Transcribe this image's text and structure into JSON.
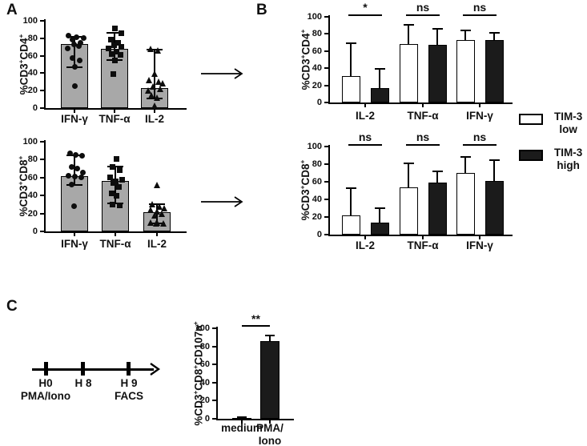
{
  "figure": {
    "panel_a_label": "A",
    "panel_b_label": "B",
    "panel_c_label": "C"
  },
  "legend": {
    "items": [
      {
        "label": "TIM-3\nlow",
        "fill": "#ffffff"
      },
      {
        "label": "TIM-3\nhigh",
        "fill": "#1b1b1b"
      }
    ]
  },
  "timeline": {
    "ticks": [
      {
        "time": "H0",
        "event": "PMA/Iono"
      },
      {
        "time": "H 8",
        "event": ""
      },
      {
        "time": "H 9",
        "event": "FACS"
      }
    ]
  },
  "colors": {
    "gray_bar": "#a8a8a8",
    "black_bar": "#1b1b1b",
    "white_bar": "#ffffff",
    "line": "#000000"
  },
  "chart_data": [
    {
      "id": "panel_a_cd4",
      "type": "bar",
      "title": "",
      "ylabel": "%CD3+CD4+",
      "xlabel": "",
      "ylim": [
        0,
        100
      ],
      "yticks": [
        0,
        20,
        40,
        60,
        80,
        100
      ],
      "grid": false,
      "categories": [
        "IFN-γ",
        "TNF-α",
        "IL-2"
      ],
      "bar_fill": "#a8a8a8",
      "values": [
        73,
        68,
        23
      ],
      "range_whiskers": [
        [
          47,
          82
        ],
        [
          55,
          86
        ],
        [
          11,
          67
        ]
      ],
      "point_markers": [
        "circle",
        "square",
        "triangle"
      ],
      "points": [
        [
          [
            -8,
            83
          ],
          [
            2,
            81
          ],
          [
            11,
            80
          ],
          [
            -3,
            78
          ],
          [
            7,
            75
          ],
          [
            -1,
            73
          ],
          [
            5,
            71
          ],
          [
            -9,
            68
          ],
          [
            -3,
            57
          ],
          [
            6,
            55
          ],
          [
            0,
            47
          ],
          [
            0,
            25
          ]
        ],
        [
          [
            0,
            91
          ],
          [
            8,
            86
          ],
          [
            -5,
            78
          ],
          [
            4,
            75
          ],
          [
            -1,
            72
          ],
          [
            8,
            70
          ],
          [
            -8,
            68
          ],
          [
            2,
            65
          ],
          [
            -4,
            62
          ],
          [
            7,
            61
          ],
          [
            0,
            55
          ],
          [
            -2,
            39
          ]
        ],
        [
          [
            -5,
            68
          ],
          [
            4,
            66
          ],
          [
            0,
            39
          ],
          [
            -7,
            32
          ],
          [
            5,
            30
          ],
          [
            10,
            28
          ],
          [
            -2,
            25
          ],
          [
            7,
            22
          ],
          [
            -8,
            20
          ],
          [
            -4,
            15
          ],
          [
            3,
            12
          ],
          [
            0,
            3
          ]
        ]
      ]
    },
    {
      "id": "panel_a_cd8",
      "type": "bar",
      "title": "",
      "ylabel": "%CD3+CD8+",
      "xlabel": "",
      "ylim": [
        0,
        100
      ],
      "yticks": [
        0,
        20,
        40,
        60,
        80,
        100
      ],
      "grid": false,
      "categories": [
        "IFN-γ",
        "TNF-α",
        "IL-2"
      ],
      "bar_fill": "#a8a8a8",
      "values": [
        62,
        56,
        21
      ],
      "range_whiskers": [
        [
          52,
          85
        ],
        [
          31,
          72
        ],
        [
          9,
          30
        ]
      ],
      "point_markers": [
        "circle",
        "square",
        "triangle"
      ],
      "points": [
        [
          [
            -6,
            87
          ],
          [
            1,
            85
          ],
          [
            9,
            84
          ],
          [
            -4,
            72
          ],
          [
            3,
            70
          ],
          [
            10,
            66
          ],
          [
            -8,
            62
          ],
          [
            0,
            61
          ],
          [
            8,
            60
          ],
          [
            -4,
            52
          ],
          [
            -1,
            28
          ]
        ],
        [
          [
            1,
            81
          ],
          [
            -4,
            72
          ],
          [
            5,
            68
          ],
          [
            -7,
            60
          ],
          [
            8,
            58
          ],
          [
            0,
            56
          ],
          [
            -3,
            54
          ],
          [
            4,
            50
          ],
          [
            -5,
            42
          ],
          [
            1,
            40
          ],
          [
            -4,
            30
          ],
          [
            5,
            29
          ]
        ],
        [
          [
            0,
            52
          ],
          [
            -6,
            30
          ],
          [
            3,
            28
          ],
          [
            9,
            26
          ],
          [
            -8,
            24
          ],
          [
            0,
            22
          ],
          [
            6,
            20
          ],
          [
            -3,
            18
          ],
          [
            -8,
            10
          ],
          [
            0,
            10
          ],
          [
            8,
            9
          ],
          [
            -1,
            9
          ]
        ]
      ]
    },
    {
      "id": "panel_b_cd4",
      "type": "bar",
      "title": "",
      "ylabel": "%CD3+CD4+",
      "xlabel": "",
      "ylim": [
        0,
        100
      ],
      "yticks": [
        0,
        20,
        40,
        60,
        80,
        100
      ],
      "grid": false,
      "legend_position": "right",
      "categories": [
        "IL-2",
        "TNF-α",
        "IFN-γ"
      ],
      "series": [
        {
          "name": "TIM-3 low",
          "fill": "#ffffff",
          "values": [
            31,
            68,
            73
          ],
          "err_hi": [
            69,
            91,
            84
          ]
        },
        {
          "name": "TIM-3 high",
          "fill": "#1b1b1b",
          "values": [
            17,
            67,
            73
          ],
          "err_hi": [
            39,
            86,
            81
          ]
        }
      ],
      "sig": [
        "*",
        "ns",
        "ns"
      ]
    },
    {
      "id": "panel_b_cd8",
      "type": "bar",
      "title": "",
      "ylabel": "%CD3+CD8+",
      "xlabel": "",
      "ylim": [
        0,
        100
      ],
      "yticks": [
        0,
        20,
        40,
        60,
        80,
        100
      ],
      "grid": false,
      "legend_position": "right",
      "categories": [
        "IL-2",
        "TNF-α",
        "IFN-γ"
      ],
      "series": [
        {
          "name": "TIM-3 low",
          "fill": "#ffffff",
          "values": [
            22,
            54,
            70
          ],
          "err_hi": [
            53,
            81,
            88
          ]
        },
        {
          "name": "TIM-3 high",
          "fill": "#1b1b1b",
          "values": [
            14,
            59,
            61
          ],
          "err_hi": [
            30,
            72,
            85
          ]
        }
      ],
      "sig": [
        "ns",
        "ns",
        "ns"
      ]
    },
    {
      "id": "panel_c_cd107a",
      "type": "bar",
      "title": "",
      "ylabel": "%CD3+CD8+CD107a+",
      "xlabel": "",
      "ylim": [
        0,
        100
      ],
      "yticks": [
        0,
        20,
        40,
        60,
        80,
        100
      ],
      "grid": false,
      "categories": [
        "medium",
        "PMA/\nIono"
      ],
      "bar_fill": "#1b1b1b",
      "values": [
        1,
        86
      ],
      "err_hi": [
        2,
        92
      ],
      "sig_pairs": [
        {
          "from": 0,
          "to": 1,
          "label": "**"
        }
      ]
    }
  ]
}
